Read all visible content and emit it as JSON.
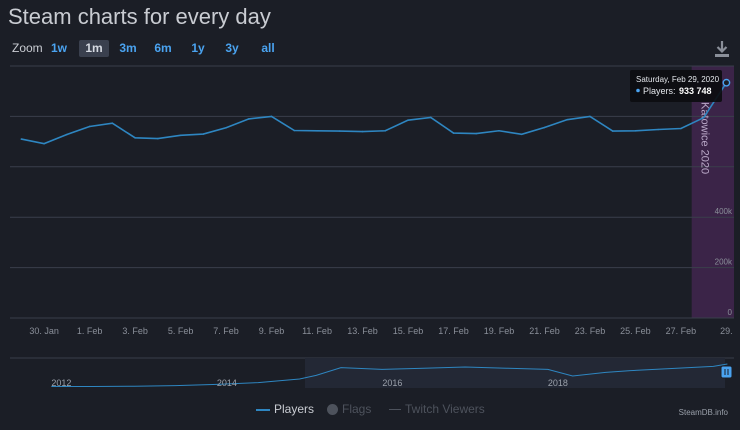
{
  "page": {
    "title": "Steam charts for every day",
    "zoom_label": "Zoom",
    "zoom_options": [
      "1w",
      "1m",
      "3m",
      "6m",
      "1y",
      "3y",
      "all"
    ],
    "zoom_active": "1m",
    "credit": "SteamDB.info"
  },
  "legend": {
    "players": "Players",
    "flags": "Flags",
    "twitch": "Twitch Viewers"
  },
  "tooltip": {
    "date": "Saturday, Feb 29, 2020",
    "label": "Players:",
    "value": "933 748"
  },
  "event_band": {
    "label": "Katowice 2020",
    "color": "#3b2448"
  },
  "colors": {
    "line": "#2e86c1",
    "grid": "#3a3f4b",
    "axis_text": "#8a8f99"
  },
  "chart_data": {
    "type": "line",
    "series": [
      {
        "name": "Players",
        "x": [
          "2020-01-29",
          "2020-01-30",
          "2020-01-31",
          "2020-02-01",
          "2020-02-02",
          "2020-02-03",
          "2020-02-04",
          "2020-02-05",
          "2020-02-06",
          "2020-02-07",
          "2020-02-08",
          "2020-02-09",
          "2020-02-10",
          "2020-02-11",
          "2020-02-12",
          "2020-02-13",
          "2020-02-14",
          "2020-02-15",
          "2020-02-16",
          "2020-02-17",
          "2020-02-18",
          "2020-02-19",
          "2020-02-20",
          "2020-02-21",
          "2020-02-22",
          "2020-02-23",
          "2020-02-24",
          "2020-02-25",
          "2020-02-26",
          "2020-02-27",
          "2020-02-28",
          "2020-02-29"
        ],
        "y": [
          710000,
          692000,
          728000,
          760000,
          773000,
          715000,
          712000,
          725000,
          730000,
          755000,
          790000,
          800000,
          744000,
          743000,
          742000,
          740000,
          743000,
          785000,
          796000,
          734000,
          732000,
          743000,
          729000,
          756000,
          787000,
          800000,
          742000,
          743000,
          748000,
          752000,
          795000,
          933748
        ]
      }
    ],
    "y_ticks": [
      0,
      200000,
      400000
    ],
    "y_tick_labels": [
      "0",
      "200k",
      "400k"
    ],
    "x_ticks": [
      "2020-01-30",
      "2020-02-01",
      "2020-02-03",
      "2020-02-05",
      "2020-02-07",
      "2020-02-09",
      "2020-02-11",
      "2020-02-13",
      "2020-02-15",
      "2020-02-17",
      "2020-02-19",
      "2020-02-21",
      "2020-02-23",
      "2020-02-25",
      "2020-02-27",
      "2020-02-29"
    ],
    "x_tick_labels": [
      "30. Jan",
      "1. Feb",
      "3. Feb",
      "5. Feb",
      "7. Feb",
      "9. Feb",
      "11. Feb",
      "13. Feb",
      "15. Feb",
      "17. Feb",
      "19. Feb",
      "21. Feb",
      "23. Feb",
      "25. Feb",
      "27. Feb",
      "29."
    ],
    "ylim": [
      0,
      1000000
    ],
    "grid": true,
    "navigator": {
      "x_labels": [
        "2012",
        "2014",
        "2016",
        "2018"
      ],
      "series": [
        {
          "year": 2012.0,
          "v": 0.05
        },
        {
          "year": 2012.5,
          "v": 0.05
        },
        {
          "year": 2013.0,
          "v": 0.06
        },
        {
          "year": 2013.5,
          "v": 0.08
        },
        {
          "year": 2014.0,
          "v": 0.12
        },
        {
          "year": 2014.5,
          "v": 0.18
        },
        {
          "year": 2015.0,
          "v": 0.3
        },
        {
          "year": 2015.2,
          "v": 0.42
        },
        {
          "year": 2015.5,
          "v": 0.68
        },
        {
          "year": 2016.0,
          "v": 0.62
        },
        {
          "year": 2016.5,
          "v": 0.66
        },
        {
          "year": 2017.0,
          "v": 0.7
        },
        {
          "year": 2017.5,
          "v": 0.66
        },
        {
          "year": 2018.0,
          "v": 0.62
        },
        {
          "year": 2018.3,
          "v": 0.4
        },
        {
          "year": 2018.7,
          "v": 0.52
        },
        {
          "year": 2019.0,
          "v": 0.58
        },
        {
          "year": 2019.5,
          "v": 0.65
        },
        {
          "year": 2020.0,
          "v": 0.72
        },
        {
          "year": 2020.17,
          "v": 0.8
        }
      ]
    }
  }
}
